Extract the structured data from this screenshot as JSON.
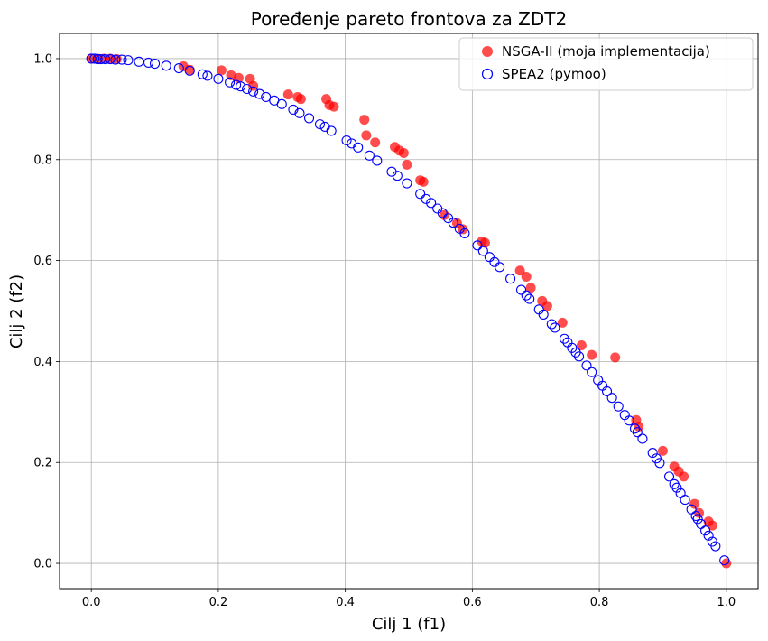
{
  "chart_data": {
    "type": "scatter",
    "title": "Poređenje pareto frontova za ZDT2",
    "xlabel": "Cilj 1 (f1)",
    "ylabel": "Cilj 2 (f2)",
    "xlim": [
      -0.05,
      1.05
    ],
    "ylim": [
      -0.05,
      1.05
    ],
    "xticks": [
      0.0,
      0.2,
      0.4,
      0.6,
      0.8,
      1.0
    ],
    "yticks": [
      0.0,
      0.2,
      0.4,
      0.6,
      0.8,
      1.0
    ],
    "xtick_labels": [
      "0.0",
      "0.2",
      "0.4",
      "0.6",
      "0.8",
      "1.0"
    ],
    "ytick_labels": [
      "0.0",
      "0.2",
      "0.4",
      "0.6",
      "0.8",
      "1.0"
    ],
    "grid": true,
    "legend_position": "top-right",
    "series": [
      {
        "name": "NSGA-II (moja implementacija)",
        "color": "#ff0000",
        "marker": "filled-circle",
        "points": [
          [
            0.0,
            1.0
          ],
          [
            0.01,
            1.0
          ],
          [
            0.02,
            1.0
          ],
          [
            0.03,
            1.0
          ],
          [
            0.04,
            0.999
          ],
          [
            0.145,
            0.985
          ],
          [
            0.155,
            0.978
          ],
          [
            0.205,
            0.977
          ],
          [
            0.22,
            0.967
          ],
          [
            0.232,
            0.962
          ],
          [
            0.25,
            0.96
          ],
          [
            0.255,
            0.946
          ],
          [
            0.31,
            0.929
          ],
          [
            0.325,
            0.924
          ],
          [
            0.33,
            0.92
          ],
          [
            0.37,
            0.92
          ],
          [
            0.375,
            0.908
          ],
          [
            0.382,
            0.905
          ],
          [
            0.43,
            0.879
          ],
          [
            0.433,
            0.848
          ],
          [
            0.447,
            0.834
          ],
          [
            0.478,
            0.825
          ],
          [
            0.485,
            0.818
          ],
          [
            0.492,
            0.813
          ],
          [
            0.497,
            0.79
          ],
          [
            0.518,
            0.759
          ],
          [
            0.523,
            0.756
          ],
          [
            0.556,
            0.69
          ],
          [
            0.576,
            0.674
          ],
          [
            0.585,
            0.662
          ],
          [
            0.615,
            0.638
          ],
          [
            0.62,
            0.635
          ],
          [
            0.675,
            0.58
          ],
          [
            0.685,
            0.568
          ],
          [
            0.692,
            0.546
          ],
          [
            0.71,
            0.52
          ],
          [
            0.718,
            0.51
          ],
          [
            0.742,
            0.477
          ],
          [
            0.772,
            0.432
          ],
          [
            0.788,
            0.413
          ],
          [
            0.825,
            0.408
          ],
          [
            0.858,
            0.284
          ],
          [
            0.862,
            0.271
          ],
          [
            0.9,
            0.223
          ],
          [
            0.918,
            0.192
          ],
          [
            0.925,
            0.182
          ],
          [
            0.933,
            0.172
          ],
          [
            0.95,
            0.118
          ],
          [
            0.957,
            0.1
          ],
          [
            0.972,
            0.083
          ],
          [
            0.978,
            0.075
          ],
          [
            1.0,
            0.0
          ]
        ]
      },
      {
        "name": "SPEA2 (pymoo)",
        "color": "#0000ff",
        "marker": "open-circle",
        "points": [
          [
            0.0,
            1.0
          ],
          [
            0.005,
            1.0
          ],
          [
            0.01,
            0.999
          ],
          [
            0.015,
            0.999
          ],
          [
            0.022,
            0.999
          ],
          [
            0.03,
            0.999
          ],
          [
            0.038,
            0.998
          ],
          [
            0.048,
            0.998
          ],
          [
            0.058,
            0.997
          ],
          [
            0.075,
            0.994
          ],
          [
            0.09,
            0.992
          ],
          [
            0.1,
            0.99
          ],
          [
            0.118,
            0.986
          ],
          [
            0.138,
            0.981
          ],
          [
            0.155,
            0.976
          ],
          [
            0.175,
            0.969
          ],
          [
            0.183,
            0.966
          ],
          [
            0.2,
            0.96
          ],
          [
            0.218,
            0.953
          ],
          [
            0.228,
            0.948
          ],
          [
            0.235,
            0.945
          ],
          [
            0.245,
            0.94
          ],
          [
            0.255,
            0.935
          ],
          [
            0.265,
            0.93
          ],
          [
            0.275,
            0.924
          ],
          [
            0.288,
            0.917
          ],
          [
            0.3,
            0.91
          ],
          [
            0.318,
            0.899
          ],
          [
            0.328,
            0.892
          ],
          [
            0.343,
            0.882
          ],
          [
            0.36,
            0.87
          ],
          [
            0.368,
            0.865
          ],
          [
            0.378,
            0.857
          ],
          [
            0.402,
            0.838
          ],
          [
            0.41,
            0.832
          ],
          [
            0.42,
            0.824
          ],
          [
            0.438,
            0.808
          ],
          [
            0.45,
            0.798
          ],
          [
            0.473,
            0.776
          ],
          [
            0.482,
            0.768
          ],
          [
            0.497,
            0.753
          ],
          [
            0.518,
            0.732
          ],
          [
            0.527,
            0.722
          ],
          [
            0.535,
            0.714
          ],
          [
            0.545,
            0.703
          ],
          [
            0.553,
            0.694
          ],
          [
            0.562,
            0.684
          ],
          [
            0.57,
            0.675
          ],
          [
            0.58,
            0.663
          ],
          [
            0.588,
            0.654
          ],
          [
            0.608,
            0.63
          ],
          [
            0.617,
            0.619
          ],
          [
            0.627,
            0.607
          ],
          [
            0.635,
            0.597
          ],
          [
            0.643,
            0.587
          ],
          [
            0.66,
            0.564
          ],
          [
            0.677,
            0.542
          ],
          [
            0.685,
            0.531
          ],
          [
            0.69,
            0.524
          ],
          [
            0.705,
            0.503
          ],
          [
            0.712,
            0.493
          ],
          [
            0.725,
            0.474
          ],
          [
            0.73,
            0.467
          ],
          [
            0.745,
            0.445
          ],
          [
            0.75,
            0.438
          ],
          [
            0.757,
            0.427
          ],
          [
            0.763,
            0.418
          ],
          [
            0.768,
            0.41
          ],
          [
            0.78,
            0.392
          ],
          [
            0.788,
            0.379
          ],
          [
            0.798,
            0.363
          ],
          [
            0.805,
            0.352
          ],
          [
            0.812,
            0.341
          ],
          [
            0.82,
            0.328
          ],
          [
            0.83,
            0.311
          ],
          [
            0.84,
            0.294
          ],
          [
            0.847,
            0.283
          ],
          [
            0.856,
            0.267
          ],
          [
            0.86,
            0.26
          ],
          [
            0.868,
            0.247
          ],
          [
            0.884,
            0.219
          ],
          [
            0.89,
            0.208
          ],
          [
            0.895,
            0.199
          ],
          [
            0.91,
            0.172
          ],
          [
            0.918,
            0.157
          ],
          [
            0.922,
            0.15
          ],
          [
            0.928,
            0.139
          ],
          [
            0.935,
            0.126
          ],
          [
            0.945,
            0.107
          ],
          [
            0.952,
            0.094
          ],
          [
            0.955,
            0.088
          ],
          [
            0.96,
            0.078
          ],
          [
            0.967,
            0.065
          ],
          [
            0.972,
            0.055
          ],
          [
            0.978,
            0.043
          ],
          [
            0.983,
            0.034
          ],
          [
            0.997,
            0.006
          ]
        ]
      }
    ]
  }
}
